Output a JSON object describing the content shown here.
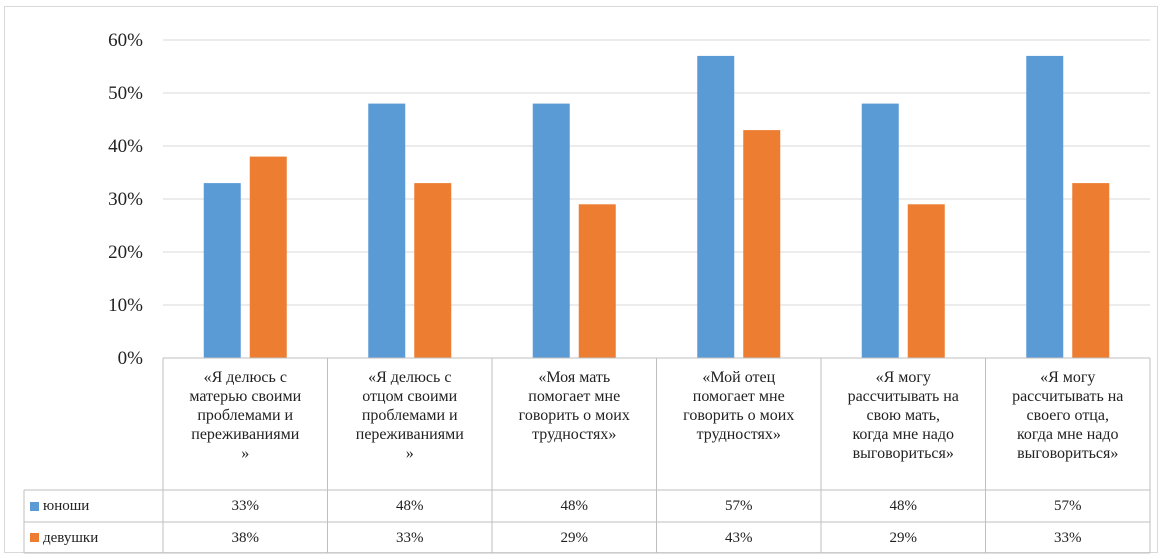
{
  "chart_data": {
    "type": "bar",
    "categories": [
      "«Я делюсь с\nматерью своими\nпроблемами и\nпереживаниями\n»",
      "«Я делюсь с\nотцом своими\nпроблемами и\nпереживаниями\n»",
      "«Моя мать\nпомогает мне\nговорить о моих\nтрудностях»",
      "«Мой отец\nпомогает мне\nговорить о моих\nтрудностях»",
      "«Я могу\nрассчитывать на\nсвою мать,\nкогда мне надо\nвыговориться»",
      "«Я могу\nрассчитывать на\nсвоего отца,\nкогда мне надо\nвыговориться»"
    ],
    "series": [
      {
        "name": "юноши",
        "color": "#5b9bd5",
        "values": [
          33,
          48,
          48,
          57,
          48,
          57
        ],
        "labels": [
          "33%",
          "48%",
          "48%",
          "57%",
          "48%",
          "57%"
        ]
      },
      {
        "name": "девушки",
        "color": "#ed7d31",
        "values": [
          38,
          33,
          29,
          43,
          29,
          33
        ],
        "labels": [
          "38%",
          "33%",
          "29%",
          "43%",
          "29%",
          "33%"
        ]
      }
    ],
    "yticks": [
      "0%",
      "10%",
      "20%",
      "30%",
      "40%",
      "50%",
      "60%"
    ],
    "ylim": [
      0,
      60
    ],
    "grid": true,
    "legend": "data-table",
    "xlabel": "",
    "ylabel": ""
  }
}
